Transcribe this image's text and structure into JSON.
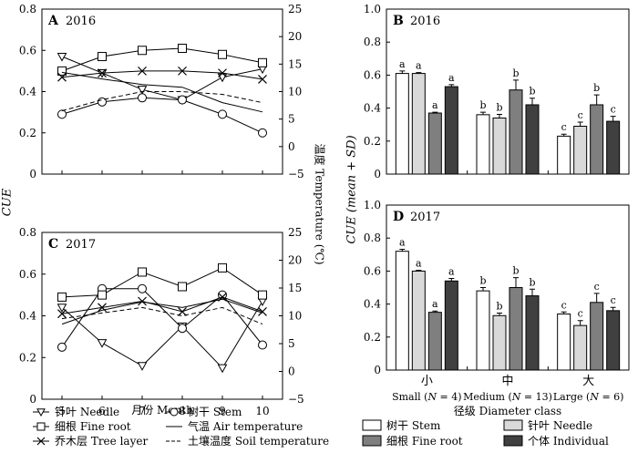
{
  "chart_data": [
    {
      "panel": "A",
      "type": "line",
      "year_label": "2016",
      "panel_label": "A",
      "x": [
        5,
        6,
        7,
        8,
        9,
        10
      ],
      "xlim": [
        4.5,
        10.5
      ],
      "ylim": [
        0,
        0.8
      ],
      "y2lim": [
        -5,
        25
      ],
      "series": [
        {
          "name": "针叶 Needle",
          "marker": "triangle-down",
          "axis": "left",
          "values": [
            0.57,
            0.49,
            0.41,
            0.36,
            0.47,
            0.51
          ]
        },
        {
          "name": "树干 Stem",
          "marker": "circle",
          "axis": "left",
          "values": [
            0.29,
            0.35,
            0.37,
            0.36,
            0.29,
            0.2
          ]
        },
        {
          "name": "细根 Fine root",
          "marker": "square",
          "axis": "left",
          "values": [
            0.5,
            0.57,
            0.6,
            0.61,
            0.58,
            0.54
          ]
        },
        {
          "name": "乔木层 Tree layer",
          "marker": "x",
          "axis": "left",
          "values": [
            0.47,
            0.49,
            0.5,
            0.5,
            0.49,
            0.46
          ]
        },
        {
          "name": "气温 Air temperature",
          "marker": "none",
          "line": "solid",
          "axis": "right",
          "values": [
            13.5,
            12.3,
            11.3,
            10.8,
            8.0,
            6.3
          ]
        },
        {
          "name": "土壤温度 Soil temperature",
          "marker": "none",
          "line": "dashed",
          "axis": "right",
          "values": [
            6.5,
            8.5,
            10.0,
            10.0,
            9.5,
            8.0
          ]
        }
      ]
    },
    {
      "panel": "C",
      "type": "line",
      "year_label": "2017",
      "panel_label": "C",
      "x": [
        5,
        6,
        7,
        8,
        9,
        10
      ],
      "xlim": [
        4.5,
        10.5
      ],
      "ylim": [
        0,
        0.8
      ],
      "y2lim": [
        -5,
        25
      ],
      "series": [
        {
          "name": "针叶 Needle",
          "marker": "triangle-down",
          "axis": "left",
          "values": [
            0.44,
            0.27,
            0.16,
            0.35,
            0.15,
            0.47
          ]
        },
        {
          "name": "树干 Stem",
          "marker": "circle",
          "axis": "left",
          "values": [
            0.25,
            0.53,
            0.53,
            0.34,
            0.5,
            0.26
          ]
        },
        {
          "name": "细根 Fine root",
          "marker": "square",
          "axis": "left",
          "values": [
            0.49,
            0.5,
            0.61,
            0.54,
            0.63,
            0.5
          ]
        },
        {
          "name": "乔木层 Tree layer",
          "marker": "x",
          "axis": "left",
          "values": [
            0.41,
            0.44,
            0.47,
            0.42,
            0.49,
            0.42
          ]
        },
        {
          "name": "气温 Air temperature",
          "marker": "none",
          "line": "solid",
          "axis": "right",
          "values": [
            8.5,
            11.0,
            12.5,
            11.5,
            13.0,
            10.5
          ]
        },
        {
          "name": "土壤温度 Soil temperature",
          "marker": "none",
          "line": "dashed",
          "axis": "right",
          "values": [
            9.5,
            10.5,
            11.5,
            10.0,
            11.5,
            8.5
          ]
        }
      ]
    },
    {
      "panel": "B",
      "type": "bar",
      "year_label": "2016",
      "panel_label": "B",
      "categories": [
        "小",
        "中",
        "大"
      ],
      "ylim": [
        0,
        1.0
      ],
      "series": [
        {
          "name": "树干 Stem",
          "color": "#ffffff",
          "values": [
            0.61,
            0.36,
            0.23
          ],
          "sd": [
            0.015,
            0.015,
            0.012
          ],
          "letters": [
            "a",
            "b",
            "c"
          ]
        },
        {
          "name": "针叶 Needle",
          "color": "#d9d9d9",
          "values": [
            0.61,
            0.34,
            0.29
          ],
          "sd": [
            0.005,
            0.022,
            0.025
          ],
          "letters": [
            "a",
            "b",
            "c"
          ]
        },
        {
          "name": "细根 Fine root",
          "color": "#7f7f7f",
          "values": [
            0.37,
            0.51,
            0.42
          ],
          "sd": [
            0.005,
            0.06,
            0.06
          ],
          "letters": [
            "a",
            "b",
            "b"
          ]
        },
        {
          "name": "个体 Individual",
          "color": "#404040",
          "values": [
            0.53,
            0.42,
            0.32
          ],
          "sd": [
            0.012,
            0.04,
            0.03
          ],
          "letters": [
            "a",
            "b",
            "c"
          ]
        }
      ]
    },
    {
      "panel": "D",
      "type": "bar",
      "year_label": "2017",
      "panel_label": "D",
      "categories": [
        "小",
        "中",
        "大"
      ],
      "ylim": [
        0,
        1.0
      ],
      "series": [
        {
          "name": "树干 Stem",
          "color": "#ffffff",
          "values": [
            0.72,
            0.48,
            0.34
          ],
          "sd": [
            0.012,
            0.02,
            0.012
          ],
          "letters": [
            "a",
            "b",
            "c"
          ]
        },
        {
          "name": "针叶 Needle",
          "color": "#d9d9d9",
          "values": [
            0.6,
            0.33,
            0.27
          ],
          "sd": [
            0.005,
            0.015,
            0.03
          ],
          "letters": [
            "a",
            "b",
            "c"
          ]
        },
        {
          "name": "细根 Fine root",
          "color": "#7f7f7f",
          "values": [
            0.35,
            0.5,
            0.41
          ],
          "sd": [
            0.008,
            0.06,
            0.055
          ],
          "letters": [
            "a",
            "b",
            "c"
          ]
        },
        {
          "name": "个体 Individual",
          "color": "#404040",
          "values": [
            0.54,
            0.45,
            0.36
          ],
          "sd": [
            0.015,
            0.04,
            0.02
          ],
          "letters": [
            "a",
            "b",
            "c"
          ]
        }
      ]
    }
  ],
  "left_axes": {
    "ylabel": "CUE",
    "y2label": "温度 Temperature (℃)",
    "xlabel": "月份 Month",
    "y_ticks": [
      "0",
      "0.2",
      "0.4",
      "0.6",
      "0.8"
    ],
    "y2_ticks": [
      "−5",
      "0",
      "5",
      "10",
      "15",
      "20",
      "25"
    ],
    "x_ticks": [
      "5",
      "6",
      "7",
      "8",
      "9",
      "10"
    ]
  },
  "right_axes": {
    "ylabel": "CUE (mean + SD)",
    "xlabel": "径级 Diameter class",
    "y_ticks": [
      "0",
      "0.2",
      "0.4",
      "0.6",
      "0.8",
      "1.0"
    ],
    "category_cn": [
      "小",
      "中",
      "大"
    ],
    "category_en": [
      "Small (N = 4)",
      "Medium (N = 13)",
      "Large (N = 6)"
    ]
  },
  "left_legend": [
    {
      "label": "针叶 Needle",
      "marker": "triangle-down"
    },
    {
      "label": "树干 Stem",
      "marker": "circle"
    },
    {
      "label": "细根 Fine root",
      "marker": "square"
    },
    {
      "label": "气温 Air temperature",
      "marker": "solid-line"
    },
    {
      "label": "乔木层 Tree layer",
      "marker": "x"
    },
    {
      "label": "土壤温度 Soil temperature",
      "marker": "dashed-line"
    }
  ],
  "right_legend": [
    {
      "label": "树干 Stem",
      "color": "#ffffff"
    },
    {
      "label": "针叶 Needle",
      "color": "#d9d9d9"
    },
    {
      "label": "细根 Fine root",
      "color": "#7f7f7f"
    },
    {
      "label": "个体 Individual",
      "color": "#404040"
    }
  ]
}
